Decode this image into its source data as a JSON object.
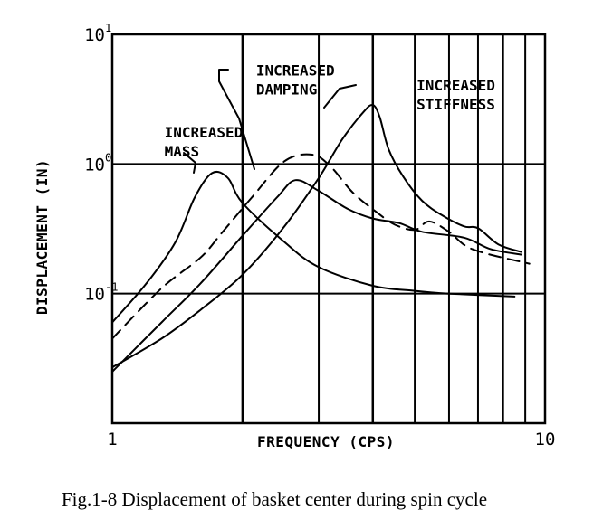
{
  "chart_data": {
    "type": "line",
    "x_scale": "log",
    "y_scale": "log",
    "xlim": [
      1,
      10
    ],
    "ylim": [
      0.01,
      10
    ],
    "xlabel": "FREQUENCY (CPS)",
    "ylabel": "DISPLACEMENT (IN)",
    "x_ticks": [
      {
        "value": 1,
        "label": "1"
      },
      {
        "value": 10,
        "label": "10"
      }
    ],
    "y_ticks": [
      {
        "value": 0.1,
        "base": "10",
        "exp": "-1"
      },
      {
        "value": 1,
        "base": "10",
        "exp": "0"
      },
      {
        "value": 10,
        "base": "10",
        "exp": "1"
      }
    ],
    "grid": true,
    "series": [
      {
        "style": "solid",
        "x": [
          1.0,
          1.2,
          1.4,
          1.55,
          1.7,
          1.85,
          2.0,
          2.5,
          3.0,
          4.0,
          5.0,
          6.0,
          8.5
        ],
        "y": [
          0.06,
          0.12,
          0.25,
          0.55,
          0.85,
          0.78,
          0.5,
          0.25,
          0.16,
          0.115,
          0.105,
          0.1,
          0.095
        ]
      },
      {
        "style": "dashed",
        "x": [
          1.0,
          1.3,
          1.6,
          1.8,
          2.1,
          2.5,
          2.9,
          3.2,
          3.6,
          4.1,
          4.5,
          5.0,
          5.4,
          6.0,
          6.8,
          9.2
        ],
        "y": [
          0.045,
          0.11,
          0.19,
          0.3,
          0.55,
          1.05,
          1.18,
          0.95,
          0.6,
          0.42,
          0.34,
          0.31,
          0.36,
          0.3,
          0.22,
          0.17
        ]
      },
      {
        "style": "solid",
        "x": [
          1.0,
          1.3,
          1.6,
          2.0,
          2.4,
          2.65,
          3.0,
          3.5,
          4.0,
          4.6,
          5.2,
          6.5,
          7.5,
          8.8
        ],
        "y": [
          0.025,
          0.06,
          0.12,
          0.28,
          0.55,
          0.75,
          0.62,
          0.45,
          0.38,
          0.35,
          0.3,
          0.27,
          0.22,
          0.2
        ]
      },
      {
        "style": "solid",
        "x": [
          1.0,
          1.3,
          1.6,
          2.0,
          2.5,
          3.0,
          3.4,
          3.8,
          4.0,
          4.15,
          4.35,
          4.7,
          5.2,
          5.8,
          6.5,
          7.0,
          7.8,
          8.8
        ],
        "y": [
          0.027,
          0.045,
          0.075,
          0.14,
          0.33,
          0.78,
          1.55,
          2.5,
          2.85,
          2.3,
          1.3,
          0.8,
          0.52,
          0.4,
          0.33,
          0.32,
          0.24,
          0.21
        ]
      }
    ],
    "annotations": [
      {
        "lines": [
          "INCREASED",
          "MASS"
        ],
        "x": 1.32,
        "y": 1.6
      },
      {
        "lines": [
          "INCREASED",
          "DAMPING"
        ],
        "x": 2.15,
        "y": 4.8
      },
      {
        "lines": [
          "INCREASED",
          "STIFFNESS"
        ],
        "x": 5.05,
        "y": 3.7
      }
    ]
  },
  "caption": "Fig.1-8  Displacement of basket center during spin cycle"
}
